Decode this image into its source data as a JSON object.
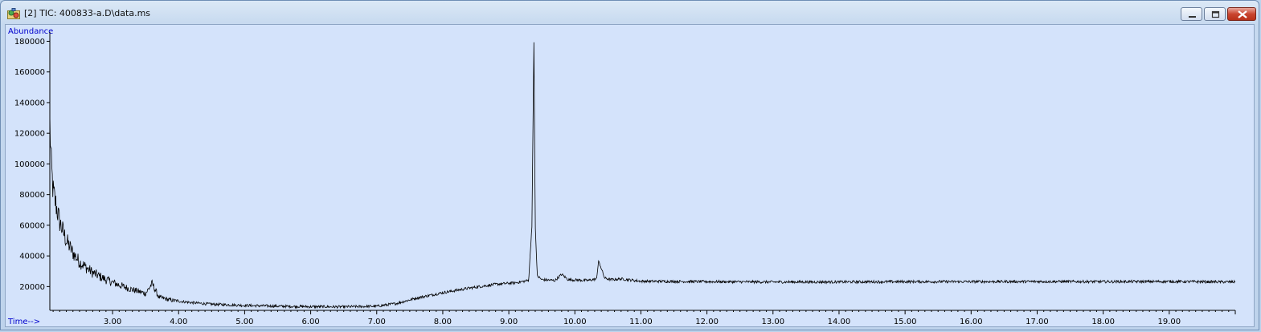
{
  "window": {
    "title": "[2] TIC: 400833-a.D\\data.ms",
    "controls": [
      "minimize",
      "maximize",
      "close"
    ],
    "icon": "chromatogram-app-icon"
  },
  "colors": {
    "plot_background": "#d4e3fb",
    "axis_label": "#0000cc",
    "trace": "#000000"
  },
  "chart_data": {
    "type": "line",
    "title": "",
    "xlabel": "Time-->",
    "ylabel": "Abundance",
    "xlim": [
      2.05,
      20.0
    ],
    "ylim": [
      4500,
      186000
    ],
    "grid": false,
    "x_ticks": [
      "3.00",
      "4.00",
      "5.00",
      "6.00",
      "7.00",
      "8.00",
      "9.00",
      "10.00",
      "11.00",
      "12.00",
      "13.00",
      "14.00",
      "15.00",
      "16.00",
      "17.00",
      "18.00",
      "19.00"
    ],
    "y_ticks": [
      "20000",
      "40000",
      "60000",
      "80000",
      "100000",
      "120000",
      "140000",
      "160000",
      "180000"
    ],
    "series": [
      {
        "x": [
          2.05,
          2.07,
          2.1,
          2.15,
          2.2,
          2.3,
          2.4,
          2.5,
          2.7,
          2.9,
          3.1,
          3.3,
          3.5,
          3.6,
          3.7,
          3.9,
          4.2,
          4.5,
          5.0,
          5.5,
          6.0,
          6.5,
          7.0,
          7.3,
          7.6,
          8.0,
          8.4,
          8.8,
          9.1,
          9.3,
          9.35,
          9.38,
          9.4,
          9.43,
          9.5,
          9.7,
          9.8,
          9.9,
          10.2,
          10.33,
          10.36,
          10.45,
          10.55,
          10.7,
          11.0,
          12.0,
          13.0,
          14.0,
          15.0,
          16.0,
          17.0,
          18.0,
          19.0,
          20.0
        ],
        "y": [
          128000,
          100000,
          82000,
          72000,
          62000,
          50000,
          42000,
          36000,
          29000,
          24500,
          21000,
          18000,
          15500,
          22000,
          13000,
          11000,
          9500,
          8500,
          7700,
          7200,
          6900,
          6800,
          7200,
          9000,
          12500,
          16000,
          19000,
          21500,
          22500,
          24000,
          60000,
          181000,
          60000,
          27000,
          24500,
          24000,
          28000,
          24500,
          24000,
          25000,
          37000,
          25500,
          24500,
          25000,
          23500,
          23200,
          23000,
          23000,
          23200,
          23200,
          23300,
          23200,
          23300,
          23000
        ]
      }
    ]
  }
}
